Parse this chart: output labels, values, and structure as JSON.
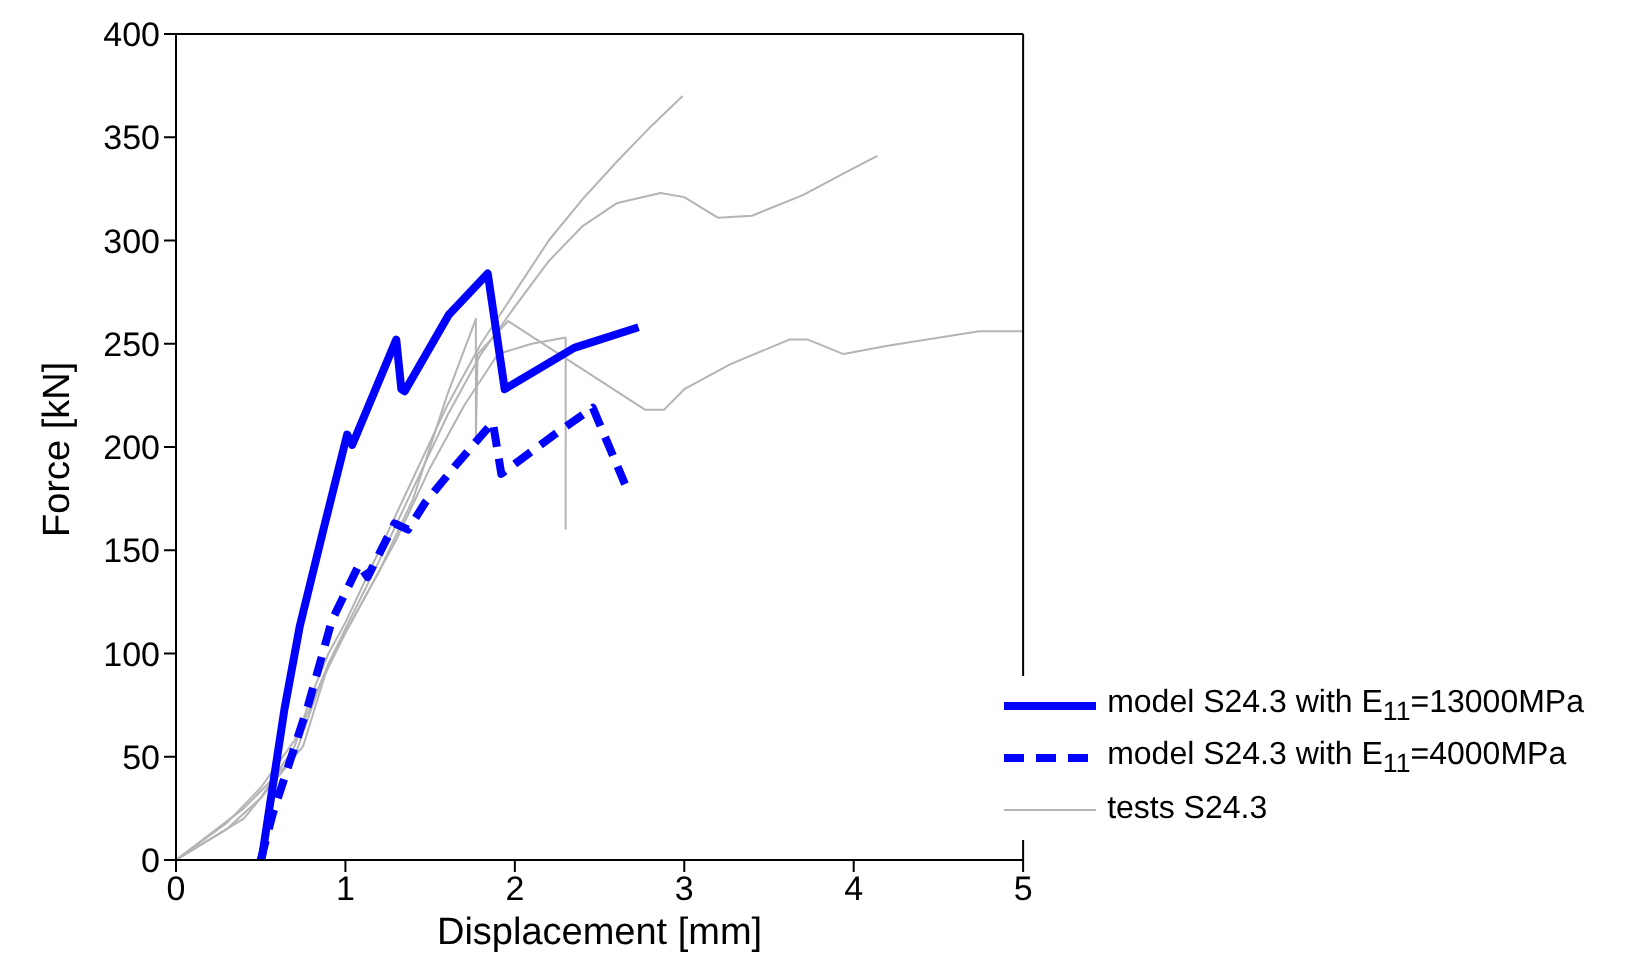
{
  "chart_data": {
    "type": "line",
    "xlabel": "Displacement [mm]",
    "ylabel": "Force [kN]",
    "xlim": [
      0,
      5
    ],
    "xticks": [
      0,
      1,
      2,
      3,
      4,
      5
    ],
    "ylim": [
      0,
      400
    ],
    "yticks": [
      0,
      50,
      100,
      150,
      200,
      250,
      300,
      350,
      400
    ],
    "legend": "bottom right",
    "grid": false,
    "marker": "none",
    "series": [
      {
        "name": "model S24.3 with E$_{11}$=13000MPa",
        "color": "#0000ff",
        "line_style": "solid",
        "x": [
          0.505,
          0.64,
          0.73,
          0.87,
          1.01,
          1.04,
          1.3,
          1.33,
          1.35,
          1.61,
          1.84,
          1.94,
          2.35,
          2.73
        ],
        "values": [
          0,
          73,
          113,
          160,
          206,
          201,
          252,
          228,
          227,
          264,
          284,
          228,
          248,
          258
        ]
      },
      {
        "name": "model S24.3 with E$_{11}$=4000MPa",
        "color": "#0000ff",
        "line_style": "dashed",
        "x": [
          0.5,
          0.57,
          0.78,
          0.92,
          1.08,
          1.13,
          1.29,
          1.37,
          1.47,
          1.66,
          1.87,
          1.92,
          2.25,
          2.46,
          2.65
        ],
        "values": [
          0,
          22,
          75,
          116,
          143,
          137,
          163,
          160,
          173,
          192,
          212,
          187,
          207,
          219,
          182
        ]
      },
      {
        "name": "tests S24.3",
        "color": "#b4b4b4",
        "line_style": "solid",
        "x": [
          0,
          0.3,
          0.5,
          0.7,
          0.8,
          0.9,
          1.0,
          1.2,
          1.4,
          1.6,
          1.8,
          2.0,
          2.2,
          2.4,
          2.6,
          2.8,
          2.99
        ],
        "values": [
          0,
          15,
          30,
          55,
          80,
          100,
          115,
          150,
          185,
          220,
          250,
          275,
          300,
          320,
          338,
          355,
          370
        ]
      },
      {
        "color": "#b4b4b4",
        "line_style": "solid",
        "x": [
          0,
          0.3,
          0.5,
          0.7,
          0.8,
          0.9,
          1.0,
          1.2,
          1.4,
          1.6,
          1.8,
          2.0,
          2.2,
          2.4,
          2.6,
          2.86,
          3.0,
          3.2,
          3.4,
          3.7,
          4.0,
          4.14
        ],
        "values": [
          0,
          18,
          35,
          58,
          75,
          95,
          112,
          145,
          180,
          215,
          245,
          268,
          290,
          307,
          318,
          323,
          321,
          311,
          312,
          322,
          335,
          341
        ]
      },
      {
        "color": "#b4b4b4",
        "line_style": "solid",
        "x": [
          0,
          0.4,
          0.7,
          0.85,
          1.0,
          1.2,
          1.4,
          1.6,
          1.77,
          1.77,
          1.78,
          1.96,
          2.77,
          2.88,
          3.0,
          3.27,
          3.62,
          3.73,
          3.94,
          4.2,
          4.74,
          5.0
        ],
        "values": [
          0,
          25,
          50,
          85,
          110,
          140,
          175,
          225,
          262,
          205,
          245,
          261,
          218,
          218,
          228,
          240,
          252,
          252,
          245,
          249,
          256,
          256
        ]
      },
      {
        "color": "#b4b4b4",
        "line_style": "solid",
        "x": [
          0,
          0.4,
          0.75,
          0.9,
          1.1,
          1.3,
          1.5,
          1.7,
          1.9,
          2.1,
          2.3,
          2.3
        ],
        "values": [
          0,
          20,
          55,
          95,
          125,
          155,
          190,
          220,
          245,
          250,
          253,
          160
        ]
      }
    ]
  }
}
